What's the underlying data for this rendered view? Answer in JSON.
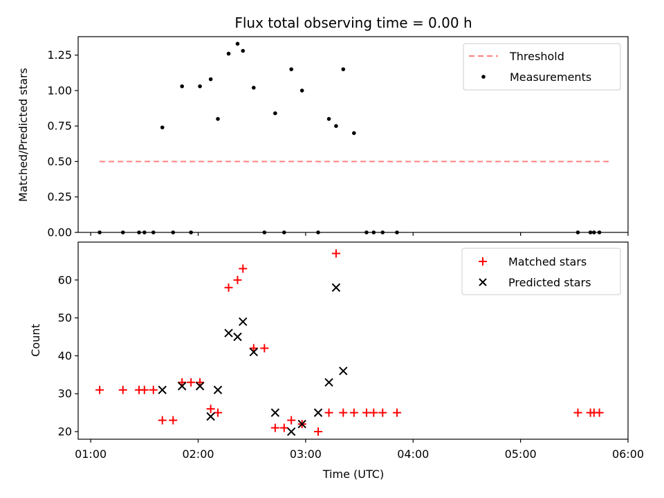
{
  "title": "Flux total observing time = 0.00 h",
  "colors": {
    "matched": "#ff0000",
    "predicted": "#000000",
    "threshold": "#ff7f7f",
    "measurement": "#000000"
  },
  "chart_data": [
    {
      "type": "scatter",
      "ylabel": "Matched/Predicted stars",
      "xlim": [
        "00:53",
        "06:00"
      ],
      "ylim": [
        0,
        1.38
      ],
      "yticks": [
        0,
        0.25,
        0.5,
        0.75,
        1.0,
        1.25
      ],
      "ytick_labels": [
        "0.00",
        "0.25",
        "0.50",
        "0.75",
        "1.00",
        "1.25"
      ],
      "legend_position": "upper right",
      "legend": [
        "Threshold",
        "Measurements"
      ],
      "threshold": {
        "name": "Threshold",
        "y": 0.5,
        "x_range": [
          "01:05",
          "05:50"
        ]
      },
      "series": [
        {
          "name": "Measurements",
          "x": [
            "01:05",
            "01:18",
            "01:27",
            "01:30",
            "01:35",
            "01:40",
            "01:46",
            "01:51",
            "01:56",
            "02:01",
            "02:07",
            "02:11",
            "02:17",
            "02:22",
            "02:25",
            "02:31",
            "02:37",
            "02:43",
            "02:48",
            "02:52",
            "02:58",
            "03:07",
            "03:13",
            "03:17",
            "03:21",
            "03:27",
            "03:34",
            "03:38",
            "03:43",
            "03:51",
            "05:32",
            "05:39",
            "05:41",
            "05:44"
          ],
          "y": [
            0,
            0,
            0,
            0,
            0,
            0.74,
            0,
            1.03,
            0,
            1.03,
            1.08,
            0.8,
            1.26,
            1.33,
            1.28,
            1.02,
            0,
            0.84,
            0,
            1.15,
            1.0,
            0,
            0.8,
            0.75,
            1.15,
            0.7,
            0,
            0,
            0,
            0,
            0,
            0,
            0,
            0
          ]
        }
      ]
    },
    {
      "type": "scatter",
      "xlabel": "Time (UTC)",
      "ylabel": "Count",
      "xlim": [
        "00:53",
        "06:00"
      ],
      "xticks": [
        "01:00",
        "02:00",
        "03:00",
        "04:00",
        "05:00",
        "06:00"
      ],
      "ylim": [
        18,
        70
      ],
      "yticks": [
        20,
        30,
        40,
        50,
        60
      ],
      "legend_position": "upper right",
      "legend": [
        "Matched stars",
        "Predicted stars"
      ],
      "series": [
        {
          "name": "Matched stars",
          "x": [
            "01:05",
            "01:18",
            "01:27",
            "01:30",
            "01:35",
            "01:40",
            "01:46",
            "01:51",
            "01:56",
            "02:01",
            "02:07",
            "02:11",
            "02:17",
            "02:22",
            "02:25",
            "02:31",
            "02:37",
            "02:43",
            "02:48",
            "02:52",
            "02:58",
            "03:07",
            "03:13",
            "03:17",
            "03:21",
            "03:27",
            "03:34",
            "03:38",
            "03:43",
            "03:51",
            "05:32",
            "05:39",
            "05:41",
            "05:44"
          ],
          "y": [
            31,
            31,
            31,
            31,
            31,
            23,
            23,
            33,
            33,
            33,
            26,
            25,
            58,
            60,
            63,
            42,
            42,
            21,
            21,
            23,
            22,
            20,
            25,
            67,
            25,
            25,
            25,
            25,
            25,
            25,
            25,
            25,
            25,
            25
          ]
        },
        {
          "name": "Predicted stars",
          "x": [
            "01:40",
            "01:51",
            "02:01",
            "02:07",
            "02:11",
            "02:17",
            "02:22",
            "02:25",
            "02:31",
            "02:43",
            "02:52",
            "02:58",
            "03:07",
            "03:13",
            "03:17",
            "03:21"
          ],
          "y": [
            31,
            32,
            32,
            24,
            31,
            46,
            45,
            49,
            41,
            25,
            20,
            22,
            25,
            33,
            58,
            36
          ]
        }
      ]
    }
  ]
}
